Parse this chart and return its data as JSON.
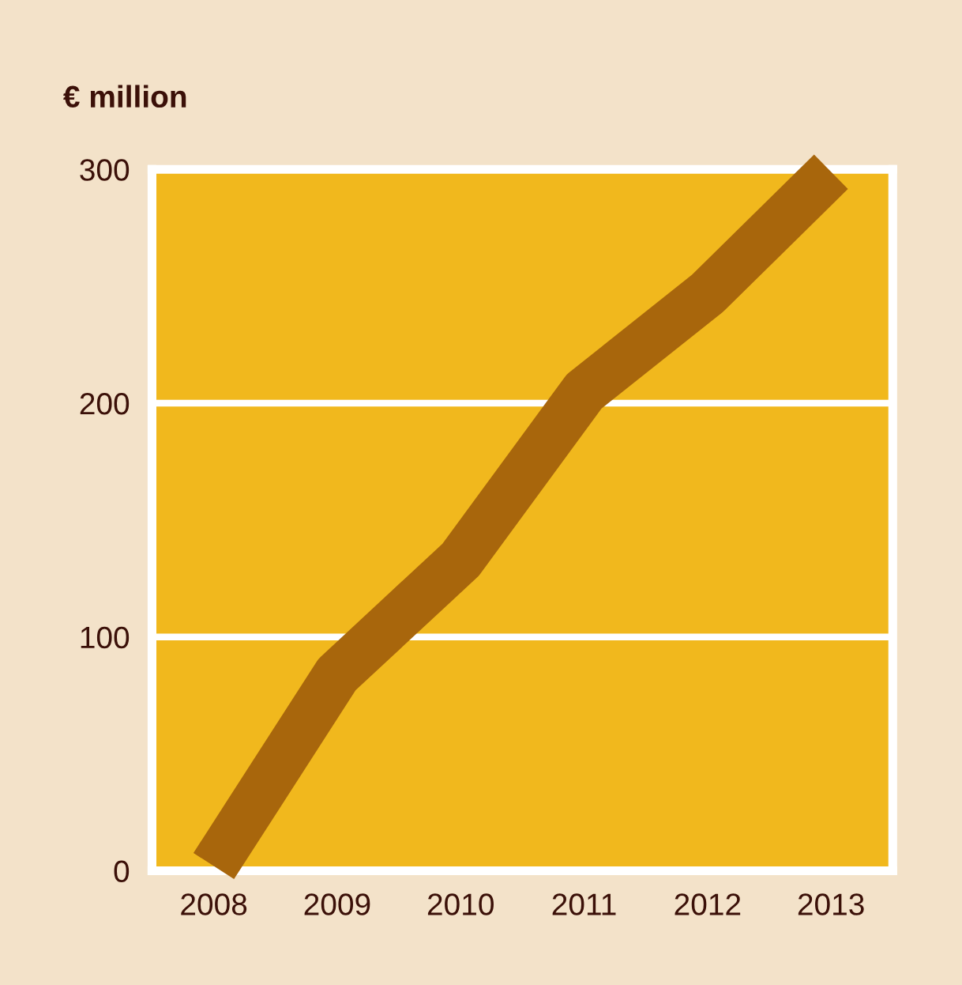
{
  "chart_data": {
    "type": "line",
    "ylabel": "€ million",
    "categories": [
      "2008",
      "2009",
      "2010",
      "2011",
      "2012",
      "2013"
    ],
    "series": [
      {
        "color": "#a8660c",
        "values": [
          2,
          84,
          133,
          205,
          247,
          299
        ]
      }
    ],
    "ylim": [
      0,
      300
    ],
    "yticks": [
      0,
      100,
      200,
      300
    ],
    "grid": "y",
    "marker": "none",
    "line_style": "solid",
    "legend": false
  }
}
